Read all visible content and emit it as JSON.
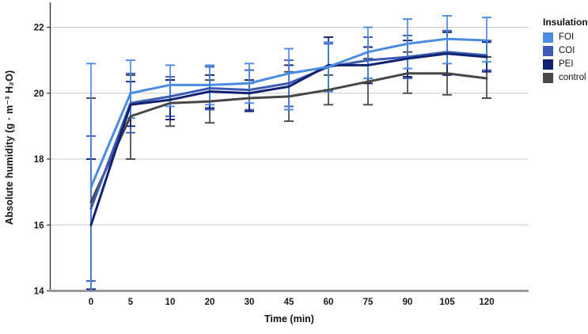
{
  "legend": {
    "title": "Insulation",
    "items": [
      {
        "label": "FOI",
        "color": "#4a8ce4"
      },
      {
        "label": "COI",
        "color": "#3d5db4"
      },
      {
        "label": "PEI",
        "color": "#122272"
      },
      {
        "label": "control",
        "color": "#474747"
      }
    ]
  },
  "colors": {
    "gridline": "#c9c9c9",
    "x_axis": "#9b9b9b",
    "y_axis": "#333333",
    "tick_text": "#1a1a1a"
  },
  "chart_data": {
    "type": "line",
    "title": "",
    "xlabel": "Time (min)",
    "ylabel": "Absolute humidity (g · m⁻³ H₂O)",
    "categories": [
      0,
      5,
      10,
      20,
      30,
      45,
      60,
      75,
      90,
      105,
      120
    ],
    "x_tick_labels": [
      "0",
      "5",
      "10",
      "20",
      "30",
      "45",
      "60",
      "75",
      "90",
      "105",
      "120"
    ],
    "y_ticks": [
      14,
      16,
      18,
      20,
      22
    ],
    "ylim": [
      14,
      22.8
    ],
    "grid": "horizontal-only",
    "legend_position": "top-right",
    "error_bars": "mean ± CI, vertical with caps, clipped at axis minimum",
    "series": [
      {
        "name": "FOI",
        "color": "#4a8ce4",
        "values": [
          17.15,
          20.0,
          20.25,
          20.25,
          20.3,
          20.6,
          20.8,
          21.25,
          21.5,
          21.65,
          21.6
        ],
        "err_lo": [
          13.4,
          19.25,
          19.6,
          19.65,
          19.7,
          19.5,
          20.05,
          20.45,
          20.75,
          20.9,
          20.95
        ],
        "err_hi": [
          20.9,
          21.0,
          20.85,
          20.85,
          20.9,
          21.35,
          21.55,
          22.0,
          22.25,
          22.35,
          22.3
        ]
      },
      {
        "name": "COI",
        "color": "#3d5db4",
        "values": [
          16.5,
          19.7,
          19.9,
          20.15,
          20.1,
          20.3,
          20.8,
          21.0,
          21.1,
          21.25,
          21.15
        ],
        "err_lo": [
          14.3,
          18.8,
          19.3,
          19.5,
          19.5,
          19.6,
          20.1,
          20.3,
          20.45,
          20.6,
          20.7
        ],
        "err_hi": [
          18.7,
          20.6,
          20.5,
          20.8,
          20.7,
          21.0,
          21.5,
          21.7,
          21.75,
          21.9,
          21.6
        ]
      },
      {
        "name": "PEI",
        "color": "#122272",
        "values": [
          16.0,
          19.65,
          19.8,
          20.05,
          20.0,
          20.2,
          20.85,
          20.85,
          21.05,
          21.2,
          21.1
        ],
        "err_lo": [
          14.05,
          19.0,
          19.2,
          19.55,
          19.45,
          19.5,
          20.05,
          20.3,
          20.5,
          20.55,
          20.65
        ],
        "err_hi": [
          18.0,
          20.35,
          20.4,
          20.55,
          20.4,
          20.85,
          21.7,
          21.4,
          21.6,
          21.85,
          21.55
        ]
      },
      {
        "name": "control",
        "color": "#474747",
        "values": [
          16.7,
          19.3,
          19.7,
          19.75,
          19.85,
          19.9,
          20.1,
          20.35,
          20.6,
          20.6,
          20.45
        ],
        "err_lo": [
          13.5,
          18.0,
          19.0,
          19.1,
          19.45,
          19.15,
          19.65,
          19.65,
          20.0,
          19.95,
          19.85
        ],
        "err_hi": [
          19.85,
          20.55,
          20.4,
          20.4,
          20.3,
          20.65,
          20.55,
          21.05,
          21.25,
          21.25,
          21.1
        ]
      }
    ]
  }
}
